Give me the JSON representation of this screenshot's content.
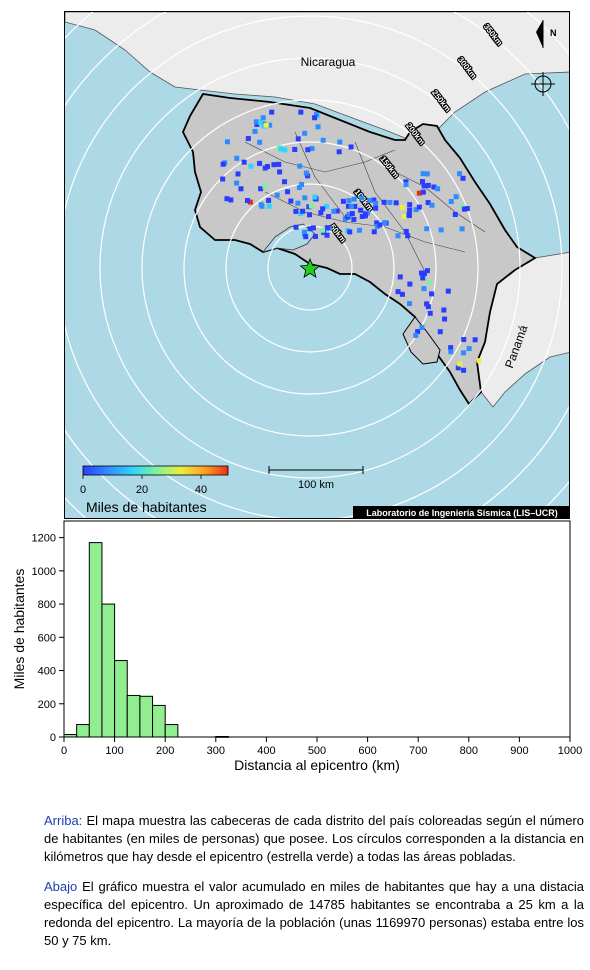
{
  "map": {
    "country_labels": [
      "Nicaragua",
      "Panamá"
    ],
    "ring_labels": [
      "50km",
      "100km",
      "150km",
      "200km",
      "250km",
      "300km",
      "350km"
    ],
    "colorbar": {
      "ticks": [
        "0",
        "20",
        "40"
      ],
      "label": "Miles de habitantes",
      "colors": [
        "#2a3cff",
        "#2f8cff",
        "#2fd3ff",
        "#7af0a0",
        "#e8f040",
        "#ffa020",
        "#e83018"
      ]
    },
    "scalebar_label": "100 km",
    "credit": "Laboratorio de Ingeniería Sísmica (LIS–UCR)",
    "colors": {
      "water": "#add8e6",
      "costa_rica": "#c8c8c8",
      "neighbors": "#ececec",
      "rings": "#ffffff",
      "epicenter": "#22cc22"
    },
    "icons": [
      "north-arrow-icon",
      "compass-crosshair-icon",
      "epicenter-star-icon"
    ]
  },
  "chart_data": {
    "type": "bar",
    "title": "",
    "xlabel": "Distancia al epicentro (km)",
    "ylabel": "Miles de habitantes",
    "xlim": [
      0,
      1000
    ],
    "ylim": [
      0,
      1300
    ],
    "xticks": [
      0,
      100,
      200,
      300,
      400,
      500,
      600,
      700,
      800,
      900,
      1000
    ],
    "yticks": [
      0,
      200,
      400,
      600,
      800,
      1000,
      1200
    ],
    "bin_width": 25,
    "bins": [
      {
        "x0": 0,
        "x1": 25,
        "value": 15
      },
      {
        "x0": 25,
        "x1": 50,
        "value": 75
      },
      {
        "x0": 50,
        "x1": 75,
        "value": 1170
      },
      {
        "x0": 75,
        "x1": 100,
        "value": 800
      },
      {
        "x0": 100,
        "x1": 125,
        "value": 460
      },
      {
        "x0": 125,
        "x1": 150,
        "value": 250
      },
      {
        "x0": 150,
        "x1": 175,
        "value": 245
      },
      {
        "x0": 175,
        "x1": 200,
        "value": 190
      },
      {
        "x0": 200,
        "x1": 225,
        "value": 75
      },
      {
        "x0": 300,
        "x1": 325,
        "value": 3
      }
    ],
    "bar_color": "#90ee90"
  },
  "caption": {
    "p1_key": "Arriba:",
    "p1_text": " El mapa muestra las cabeceras de cada distrito del país coloreadas según el número de habitantes (en miles de personas) que posee. Los círculos corresponden a la distancia en kilómetros que hay desde el epicentro (estrella verde) a todas las áreas pobladas.",
    "p2_key": "Abajo",
    "p2_text": " El gráfico muestra el valor acumulado en miles de habitantes que hay a una distacia específica del epicentro. Un aproximado de 14785 habitantes se encontraba a 25 km a la redonda del epicentro. La mayoría de la población (unas 1169970 personas) estaba entre los 50 y 75 km."
  }
}
